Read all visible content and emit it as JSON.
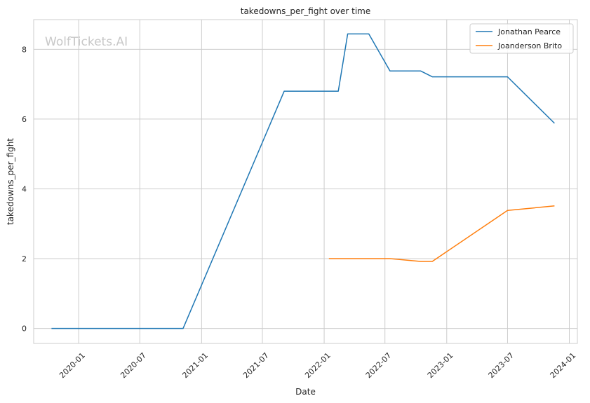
{
  "chart_data": {
    "type": "line",
    "title": "takedowns_per_fight over time",
    "xlabel": "Date",
    "ylabel": "takedowns_per_fight",
    "watermark": "WolfTickets.AI",
    "x_ticks": [
      "2020-01",
      "2020-07",
      "2021-01",
      "2021-07",
      "2022-01",
      "2022-07",
      "2023-01",
      "2023-07",
      "2024-01"
    ],
    "y_ticks": [
      "0",
      "2",
      "4",
      "6",
      "8"
    ],
    "xlim": [
      "2019-08-20",
      "2024-01-25"
    ],
    "ylim": [
      -0.43,
      8.85
    ],
    "grid": true,
    "legend_position": "top-right",
    "series": [
      {
        "name": "Jonathan Pearce",
        "color": "#1f77b4",
        "points": [
          {
            "x": "2019-10-12",
            "y": 0
          },
          {
            "x": "2020-11-07",
            "y": 0
          },
          {
            "x": "2021-09-04",
            "y": 6.8
          },
          {
            "x": "2022-02-12",
            "y": 6.8
          },
          {
            "x": "2022-03-12",
            "y": 8.44
          },
          {
            "x": "2022-05-14",
            "y": 8.44
          },
          {
            "x": "2022-07-16",
            "y": 7.38
          },
          {
            "x": "2022-10-15",
            "y": 7.38
          },
          {
            "x": "2022-11-19",
            "y": 7.21
          },
          {
            "x": "2023-07-01",
            "y": 7.21
          },
          {
            "x": "2023-11-18",
            "y": 5.88
          }
        ]
      },
      {
        "name": "Joanderson Brito",
        "color": "#ff7f0e",
        "points": [
          {
            "x": "2022-01-15",
            "y": 2.0
          },
          {
            "x": "2022-07-16",
            "y": 2.0
          },
          {
            "x": "2022-10-15",
            "y": 1.92
          },
          {
            "x": "2022-11-19",
            "y": 1.92
          },
          {
            "x": "2023-07-01",
            "y": 3.38
          },
          {
            "x": "2023-11-18",
            "y": 3.51
          }
        ]
      }
    ]
  }
}
